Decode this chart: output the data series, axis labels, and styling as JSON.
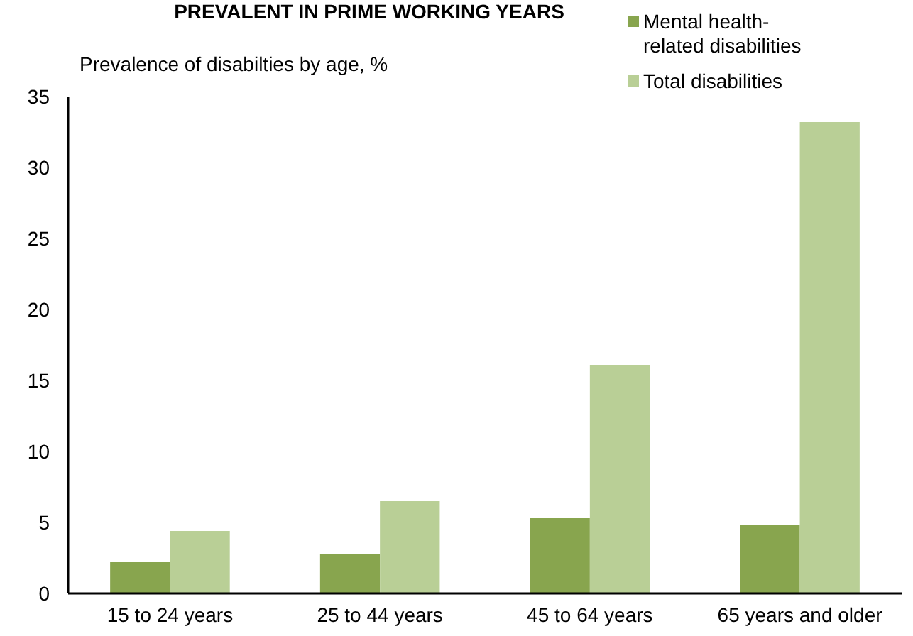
{
  "chart_data": {
    "type": "bar",
    "title": "PREVALENT IN PRIME WORKING YEARS",
    "subtitle": "Prevalence of disabilties by age, %",
    "categories": [
      "15 to 24 years",
      "25 to 44 years",
      "45 to 64 years",
      "65 years and older"
    ],
    "series": [
      {
        "name": "Mental health-related disabilities",
        "color": "#88a54e",
        "values": [
          2.2,
          2.8,
          5.3,
          4.8
        ]
      },
      {
        "name": "Total disabilities",
        "color": "#b9cf96",
        "values": [
          4.4,
          6.5,
          16.1,
          33.2
        ]
      }
    ],
    "ylim": [
      0,
      35
    ],
    "yticks": [
      0,
      5,
      10,
      15,
      20,
      25,
      30,
      35
    ],
    "grid": false,
    "legend": "top right"
  }
}
